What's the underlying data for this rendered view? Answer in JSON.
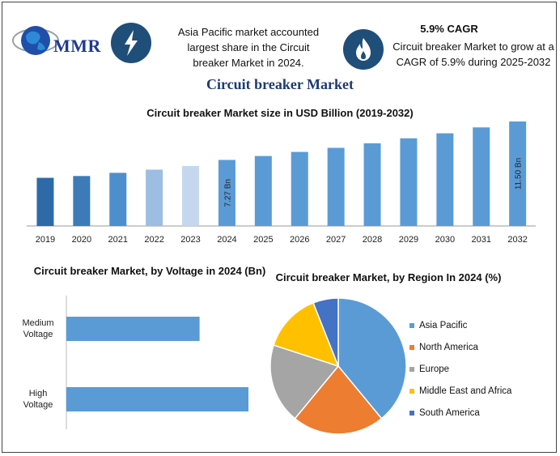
{
  "header": {
    "logo_text": "MMR",
    "info_left": "Asia Pacific market accounted largest share in the Circuit breaker Market in 2024.",
    "cagr_title": "5.9% CAGR",
    "info_right": "Circuit breaker Market to grow at a CAGR of 5.9% during 2025-2032",
    "main_title": "Circuit breaker Market",
    "icons": [
      "globe-icon",
      "lightning-icon",
      "flame-icon"
    ]
  },
  "chart_data": [
    {
      "type": "bar",
      "title": "Circuit breaker Market size in USD Billion (2019-2032)",
      "categories": [
        "2019",
        "2020",
        "2021",
        "2022",
        "2023",
        "2024",
        "2025",
        "2026",
        "2027",
        "2028",
        "2029",
        "2030",
        "2031",
        "2032"
      ],
      "values": [
        5.3,
        5.5,
        5.85,
        6.2,
        6.6,
        7.27,
        7.7,
        8.15,
        8.6,
        9.1,
        9.65,
        10.2,
        10.85,
        11.5
      ],
      "data_labels": {
        "2024": "7.27 Bn",
        "2032": "11.50 Bn"
      },
      "colors": [
        "#2e6aa8",
        "#3c7bb8",
        "#4d8fcc",
        "#9dbde3",
        "#c4d7ef",
        "#5b9bd5",
        "#5b9bd5",
        "#5b9bd5",
        "#5b9bd5",
        "#5b9bd5",
        "#5b9bd5",
        "#5b9bd5",
        "#5b9bd5",
        "#5b9bd5"
      ]
    },
    {
      "type": "bar",
      "orientation": "horizontal",
      "title": "Circuit breaker Market, by Voltage in 2024 (Bn)",
      "categories": [
        "Medium Voltage",
        "High Voltage"
      ],
      "category_lines": [
        [
          "Medium",
          "Voltage"
        ],
        [
          "High",
          "Voltage"
        ]
      ],
      "values": [
        3.0,
        4.1
      ],
      "color": "#5b9bd5"
    },
    {
      "type": "pie",
      "title": "Circuit breaker Market, by Region In 2024 (%)",
      "labels": [
        "Asia Pacific",
        "North America",
        "Europe",
        "Middle East and Africa",
        "South America"
      ],
      "values": [
        39,
        22,
        19,
        14,
        6
      ],
      "colors": [
        "#5b9bd5",
        "#ed7d31",
        "#a5a5a5",
        "#ffc000",
        "#4472c4"
      ],
      "legend_position": "right"
    }
  ]
}
